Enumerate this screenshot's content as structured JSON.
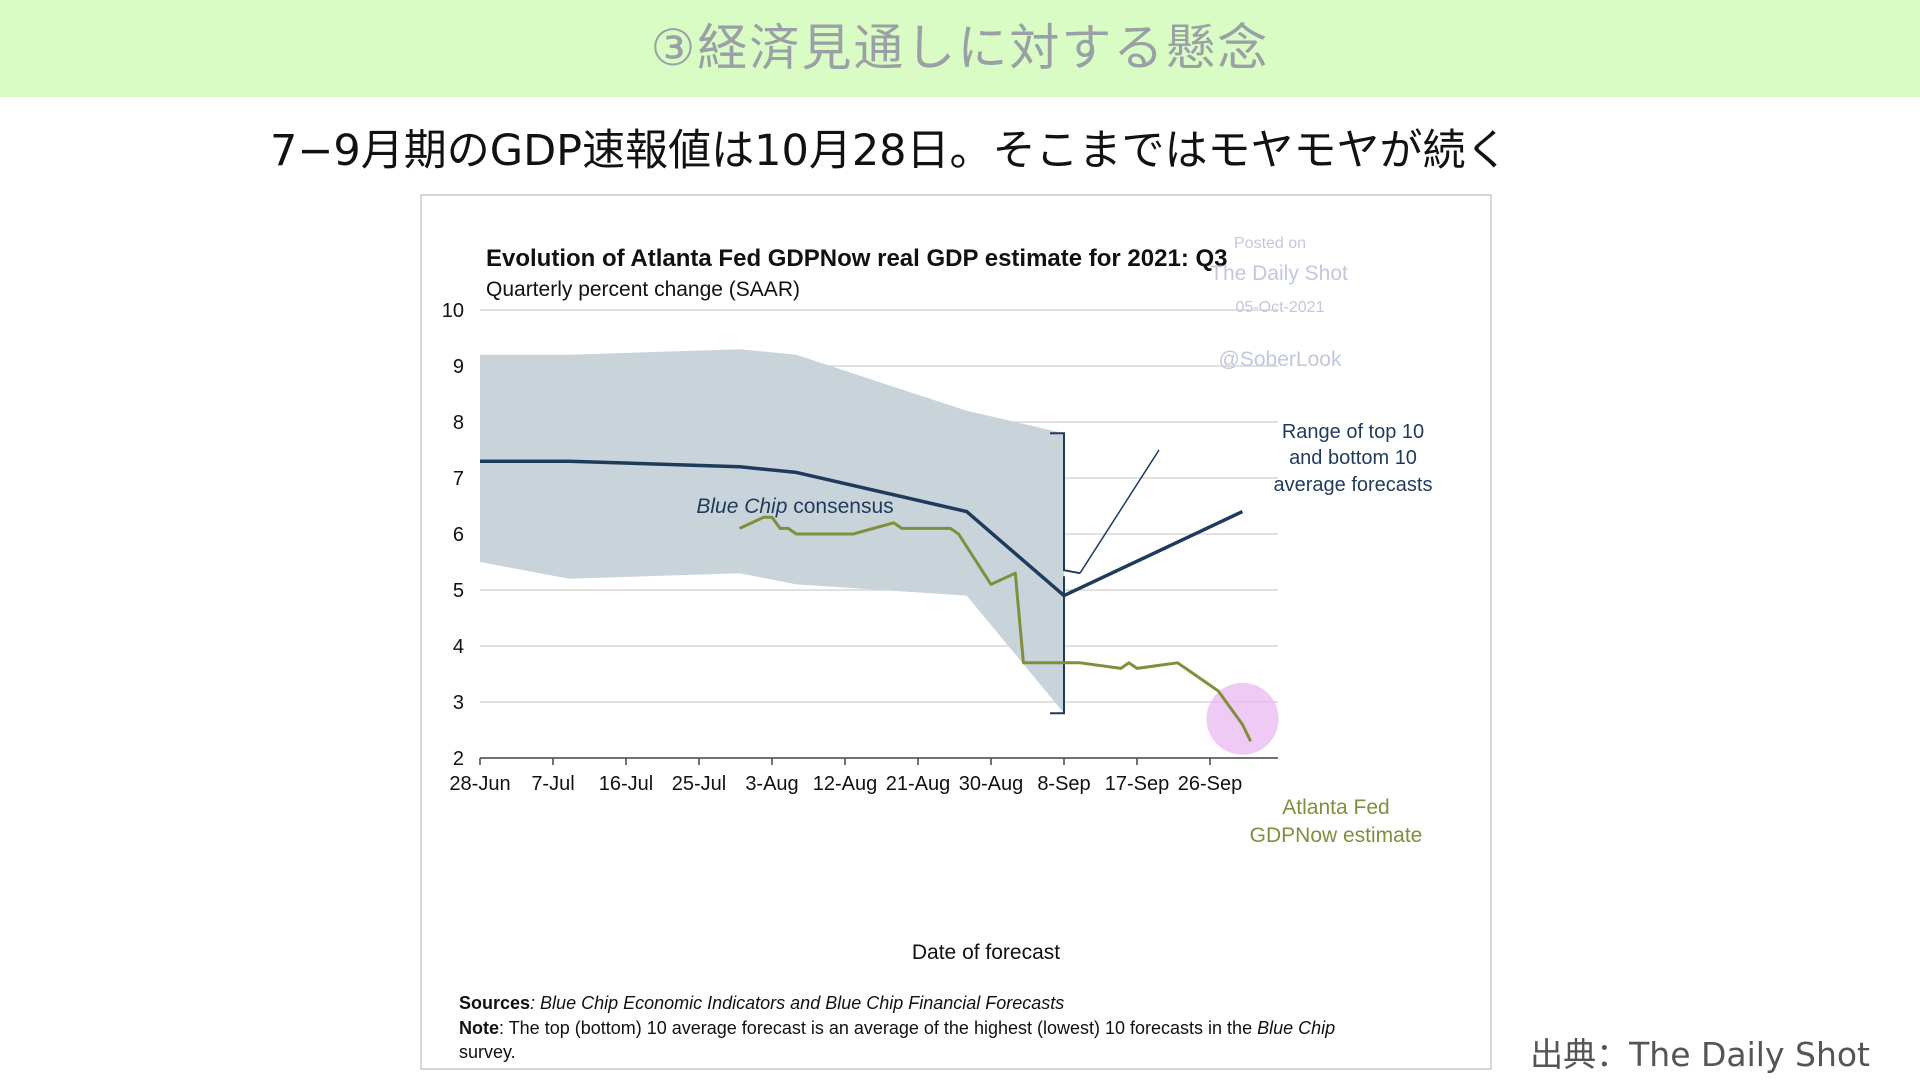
{
  "slide": {
    "title": "③経済見通しに対する懸念",
    "subtitle": "7−9月期のGDP速報値は10月28日。そこまではモヤモヤが続く",
    "credit": "出典：The Daily Shot"
  },
  "colors": {
    "banner_bg": "#d9fcc4",
    "band": "#c9d3da",
    "consensus": "#1f3b5c",
    "gdpnow": "#7f8f3c",
    "highlight": "#e9b8f2"
  },
  "chart_data": {
    "type": "line",
    "title": "Evolution of Atlanta Fed GDPNow real GDP estimate for 2021: Q3",
    "subtitle": "Quarterly percent change (SAAR)",
    "xlabel": "Date of forecast",
    "ylabel": "",
    "ylim": [
      2,
      10
    ],
    "y_ticks": [
      "2",
      "3",
      "4",
      "5",
      "6",
      "7",
      "8",
      "9",
      "10"
    ],
    "x_ticks": [
      "28-Jun",
      "7-Jul",
      "16-Jul",
      "25-Jul",
      "3-Aug",
      "12-Aug",
      "21-Aug",
      "30-Aug",
      "8-Sep",
      "17-Sep",
      "26-Sep"
    ],
    "grid": "horizontal",
    "watermark": {
      "posted_on": "Posted on",
      "source": "The Daily Shot",
      "date": "05-Oct-2021",
      "handle": "@SoberLook"
    },
    "band": {
      "name": "Range of top 10 and bottom 10 average forecasts",
      "label_lines": [
        "Range of top 10",
        "and bottom 10",
        "average forecasts"
      ],
      "top": [
        {
          "x": "2021-06-28",
          "y": 9.2
        },
        {
          "x": "2021-07-09",
          "y": 9.2
        },
        {
          "x": "2021-07-30",
          "y": 9.3
        },
        {
          "x": "2021-08-06",
          "y": 9.2
        },
        {
          "x": "2021-08-27",
          "y": 8.2
        },
        {
          "x": "2021-09-08",
          "y": 7.8
        }
      ],
      "bottom": [
        {
          "x": "2021-06-28",
          "y": 5.5
        },
        {
          "x": "2021-07-09",
          "y": 5.2
        },
        {
          "x": "2021-07-30",
          "y": 5.3
        },
        {
          "x": "2021-08-06",
          "y": 5.1
        },
        {
          "x": "2021-08-27",
          "y": 4.9
        },
        {
          "x": "2021-09-08",
          "y": 2.8
        }
      ]
    },
    "series": [
      {
        "name": "Blue Chip consensus",
        "label_italic": "Blue Chip",
        "label_rest": " consensus",
        "points": [
          {
            "x": "2021-06-28",
            "y": 7.3
          },
          {
            "x": "2021-07-09",
            "y": 7.3
          },
          {
            "x": "2021-07-30",
            "y": 7.2
          },
          {
            "x": "2021-08-06",
            "y": 7.1
          },
          {
            "x": "2021-08-27",
            "y": 6.4
          },
          {
            "x": "2021-09-08",
            "y": 4.9
          },
          {
            "x": "2021-09-30",
            "y": 6.4
          }
        ]
      },
      {
        "name": "Atlanta Fed GDPNow estimate",
        "label_lines": [
          "Atlanta Fed",
          "GDPNow estimate"
        ],
        "points": [
          {
            "x": "2021-07-30",
            "y": 6.1
          },
          {
            "x": "2021-08-02",
            "y": 6.3
          },
          {
            "x": "2021-08-03",
            "y": 6.3
          },
          {
            "x": "2021-08-04",
            "y": 6.1
          },
          {
            "x": "2021-08-05",
            "y": 6.1
          },
          {
            "x": "2021-08-06",
            "y": 6.0
          },
          {
            "x": "2021-08-13",
            "y": 6.0
          },
          {
            "x": "2021-08-18",
            "y": 6.2
          },
          {
            "x": "2021-08-19",
            "y": 6.1
          },
          {
            "x": "2021-08-25",
            "y": 6.1
          },
          {
            "x": "2021-08-26",
            "y": 6.0
          },
          {
            "x": "2021-08-30",
            "y": 5.1
          },
          {
            "x": "2021-09-02",
            "y": 5.3
          },
          {
            "x": "2021-09-03",
            "y": 3.7
          },
          {
            "x": "2021-09-10",
            "y": 3.7
          },
          {
            "x": "2021-09-15",
            "y": 3.6
          },
          {
            "x": "2021-09-16",
            "y": 3.7
          },
          {
            "x": "2021-09-17",
            "y": 3.6
          },
          {
            "x": "2021-09-22",
            "y": 3.7
          },
          {
            "x": "2021-09-24",
            "y": 3.5
          },
          {
            "x": "2021-09-27",
            "y": 3.2
          },
          {
            "x": "2021-09-30",
            "y": 2.6
          },
          {
            "x": "2021-10-01",
            "y": 2.3
          }
        ]
      }
    ],
    "footnotes": {
      "sources_label": "Sources",
      "sources_text": ": Blue Chip Economic Indicators and Blue Chip Financial Forecasts",
      "note_label": "Note",
      "note_text_1": ": The top (bottom) 10 average forecast is an average of the highest (lowest) 10 forecasts in the ",
      "note_italic": "Blue Chip",
      "note_text_2": "survey."
    }
  }
}
